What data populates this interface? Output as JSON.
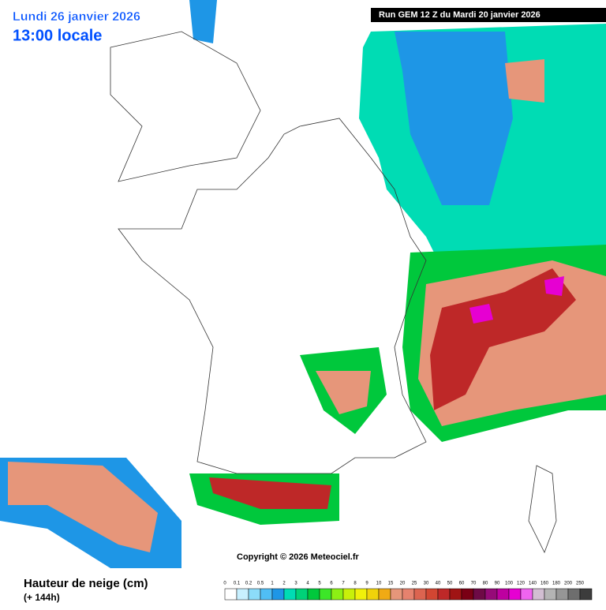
{
  "header": {
    "date": "Lundi 26 janvier 2026",
    "time": "13:00 locale",
    "run": "Run GEM 12 Z du Mardi 20 janvier 2026"
  },
  "copyright": "Copyright © 2026 Meteociel.fr",
  "legend": {
    "title": "Hauteur de neige (cm)",
    "lead": "(+ 144h)",
    "labels": [
      0,
      0.1,
      0.2,
      0.5,
      1,
      2,
      3,
      4,
      5,
      6,
      7,
      8,
      9,
      10,
      15,
      20,
      25,
      30,
      40,
      50,
      60,
      70,
      80,
      90,
      100,
      120,
      140,
      160,
      180,
      200,
      250
    ],
    "colors": [
      "#ffffff",
      "#c8f0ff",
      "#8cdcfa",
      "#50bef5",
      "#1e96e6",
      "#00dcb4",
      "#00d278",
      "#00c83c",
      "#3ce628",
      "#8cf014",
      "#c8f00a",
      "#f0f00a",
      "#f0d20a",
      "#f0aa14",
      "#e6967a",
      "#e6826e",
      "#dc6450",
      "#d24632",
      "#be2828",
      "#a01414",
      "#7a0014",
      "#6e0a46",
      "#960a78",
      "#be00a0",
      "#e600d2",
      "#f064f0",
      "#d2bed2",
      "#b4b4b4",
      "#969696",
      "#6e6e6e",
      "#3c3c3c"
    ]
  }
}
